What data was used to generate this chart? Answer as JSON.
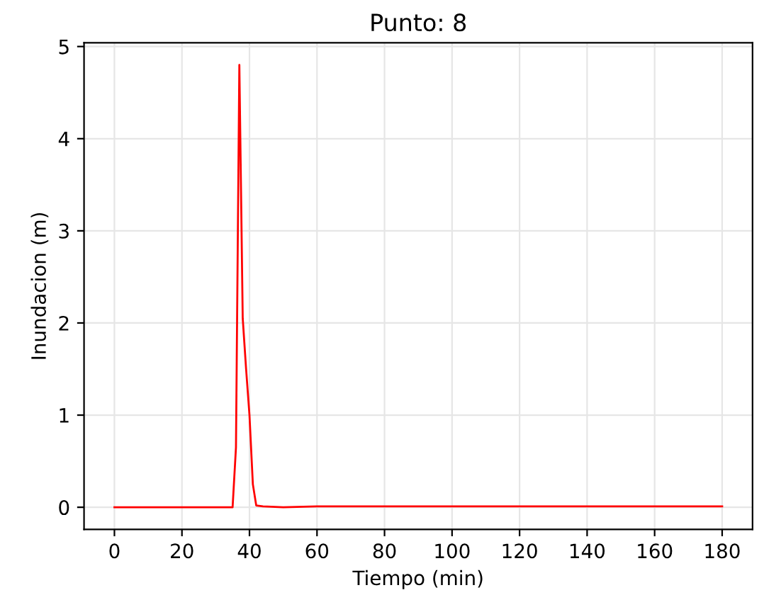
{
  "chart_data": {
    "type": "line",
    "title": "Punto: 8",
    "xlabel": "Tiempo (min)",
    "ylabel": "Inundacion (m)",
    "x": [
      0,
      35,
      36,
      37,
      38,
      39,
      40,
      41,
      42,
      44,
      50,
      60,
      70,
      80,
      90,
      100,
      110,
      120,
      130,
      140,
      150,
      160,
      170,
      180
    ],
    "series": [
      {
        "color": "#ff0000",
        "values": [
          0,
          0,
          0.65,
          4.8,
          2.05,
          1.5,
          1.0,
          0.25,
          0.02,
          0.01,
          0.0,
          0.01,
          0.01,
          0.01,
          0.01,
          0.01,
          0.01,
          0.01,
          0.01,
          0.01,
          0.01,
          0.01,
          0.01,
          0.01
        ]
      }
    ],
    "xlim": [
      -9,
      189
    ],
    "ylim": [
      -0.24,
      5.04
    ],
    "xticks": [
      0,
      20,
      40,
      60,
      80,
      100,
      120,
      140,
      160,
      180
    ],
    "yticks": [
      0,
      1,
      2,
      3,
      4,
      5
    ],
    "grid": true,
    "marker": "none",
    "line_style": "solid"
  }
}
